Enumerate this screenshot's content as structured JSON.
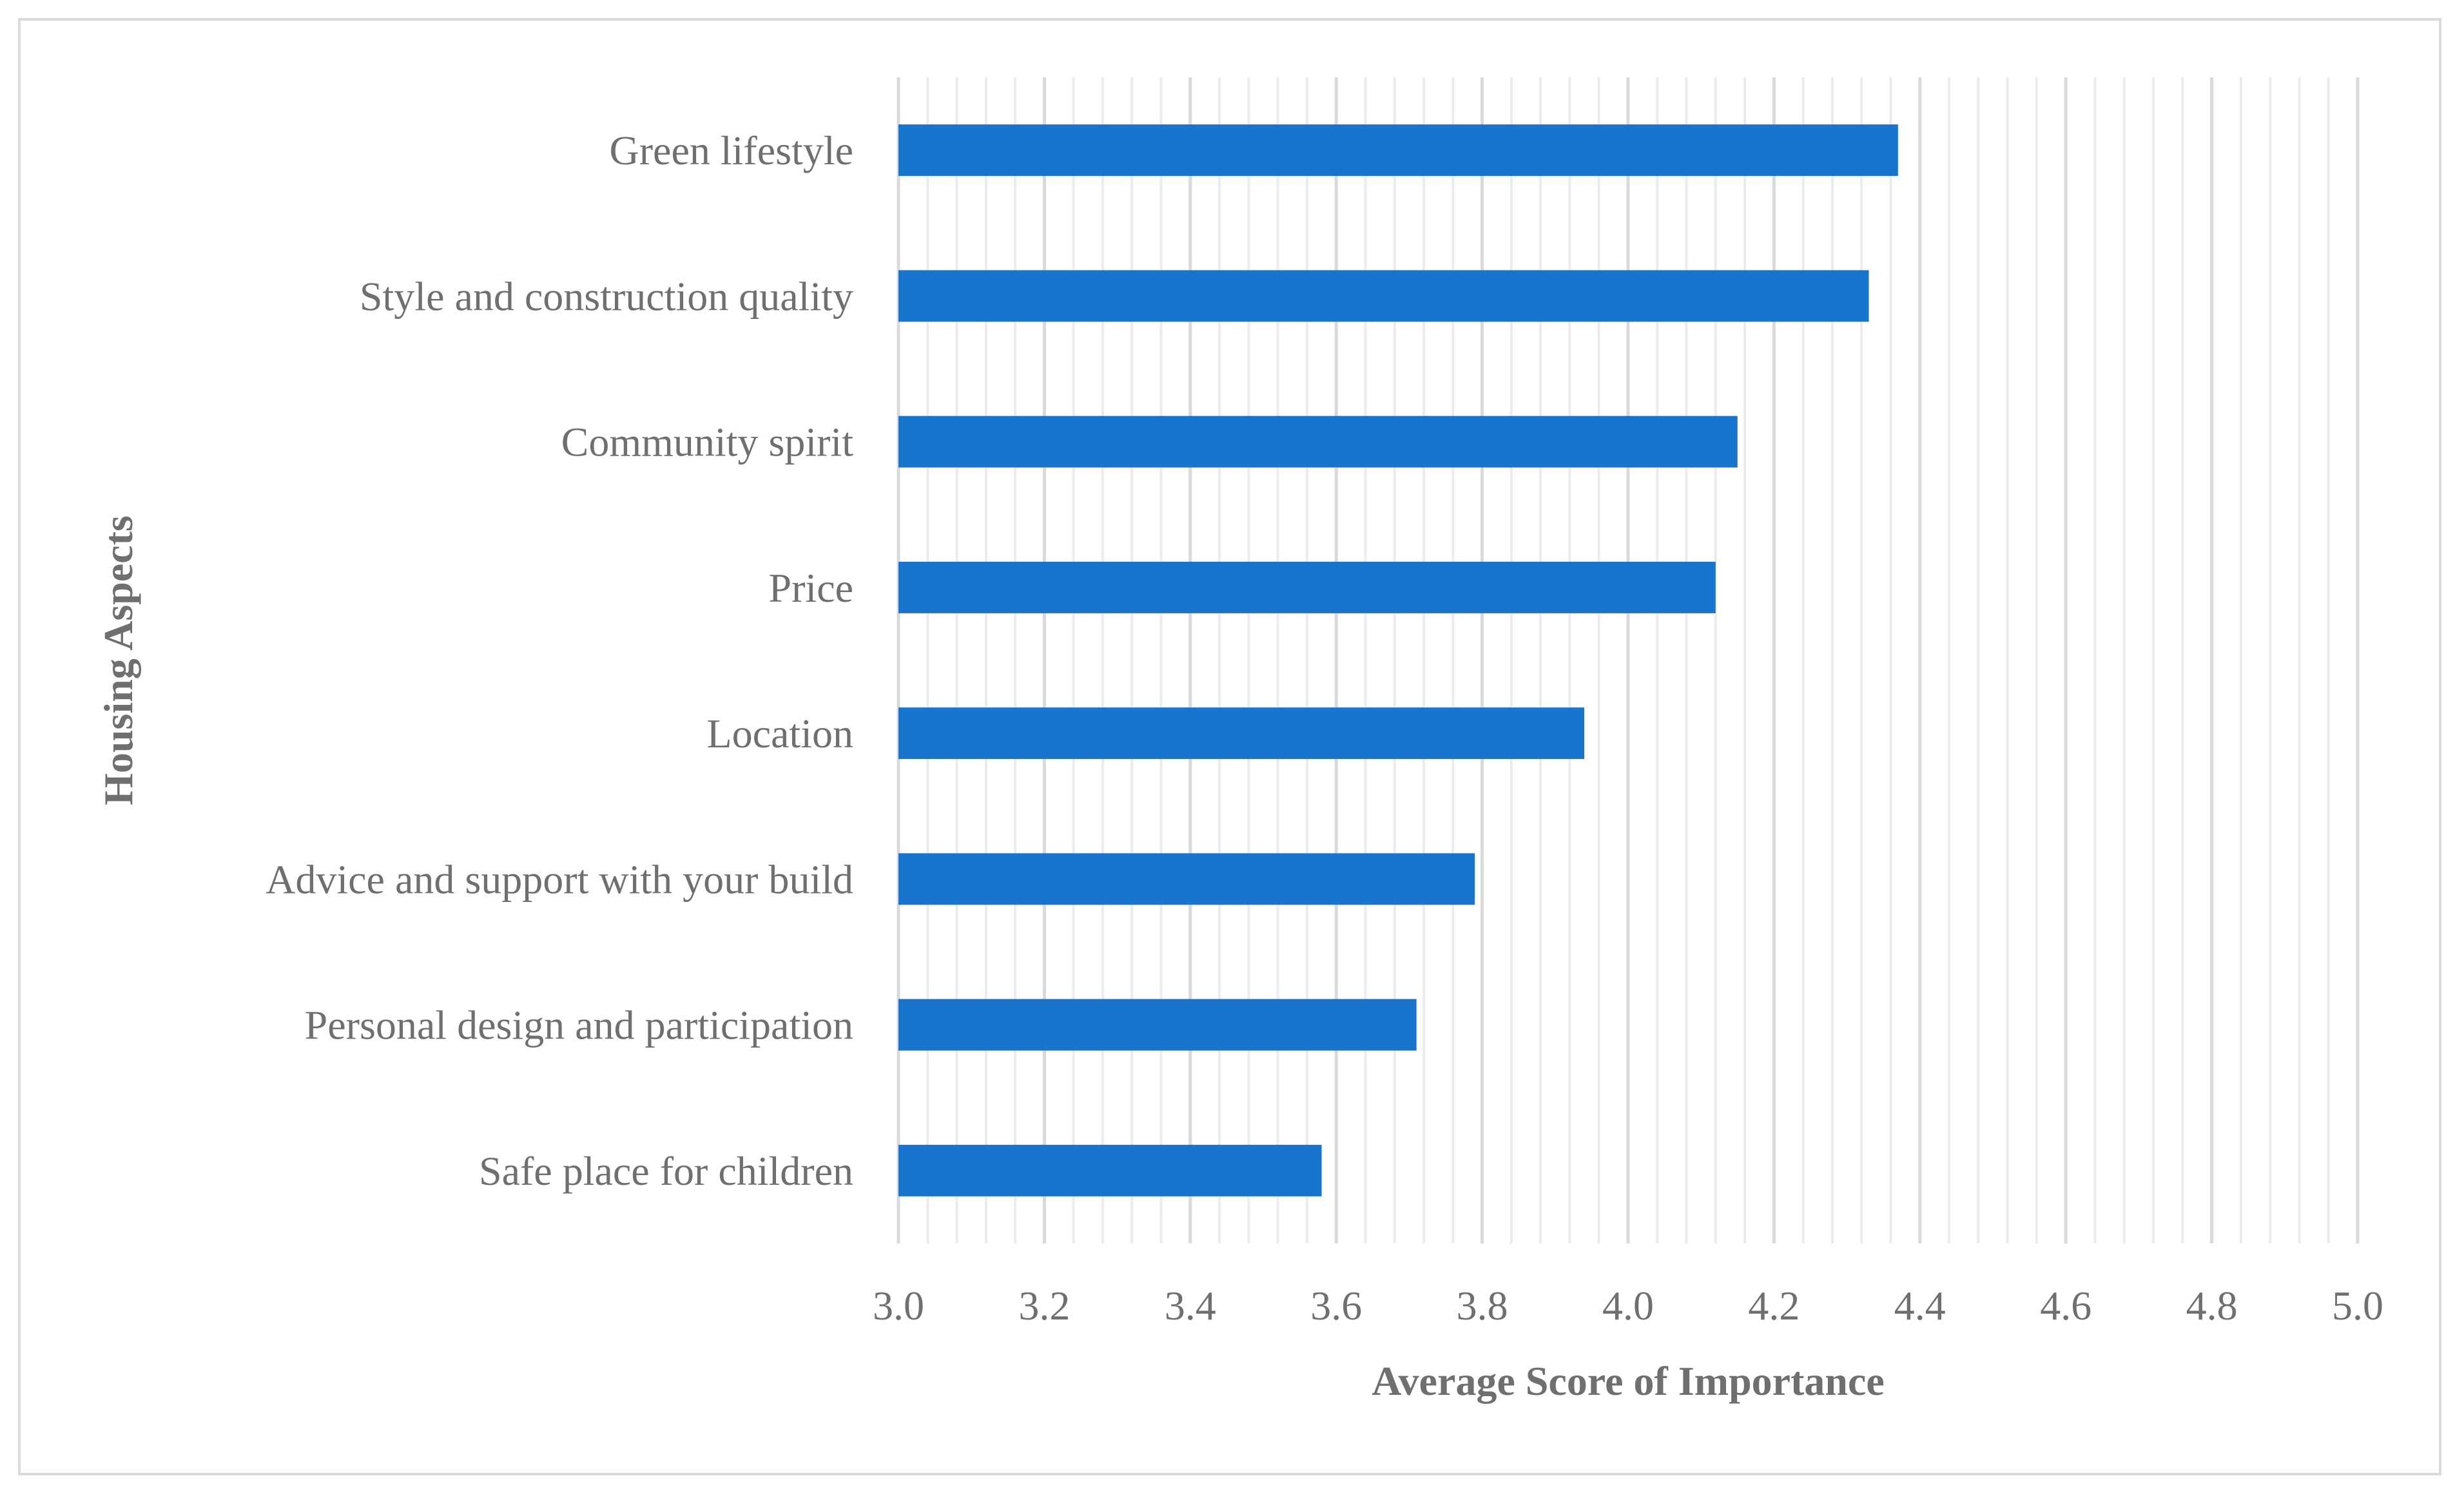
{
  "chart_data": {
    "type": "bar",
    "orientation": "horizontal",
    "categories": [
      "Green lifestyle",
      "Style and construction quality",
      "Community spirit",
      "Price",
      "Location",
      "Advice and support with your build",
      "Personal design and participation",
      "Safe place for children"
    ],
    "values": [
      4.37,
      4.33,
      4.15,
      4.12,
      3.94,
      3.79,
      3.71,
      3.58
    ],
    "xlabel": "Average Score of Importance",
    "ylabel": "Housing Aspects",
    "xlim": [
      3.0,
      5.0
    ],
    "major_ticks": [
      "3.0",
      "3.2",
      "3.4",
      "3.6",
      "3.8",
      "4.0",
      "4.2",
      "4.4",
      "4.6",
      "4.8",
      "5.0"
    ],
    "major_step": 0.2,
    "minor_step": 0.04,
    "grid": true,
    "legend": "none",
    "colors": {
      "bar": "#1874CD",
      "major_grid": "#d9d9d9",
      "minor_grid": "#ececec",
      "text": "#6f6f6f",
      "frame": "#d9d9d9"
    }
  }
}
